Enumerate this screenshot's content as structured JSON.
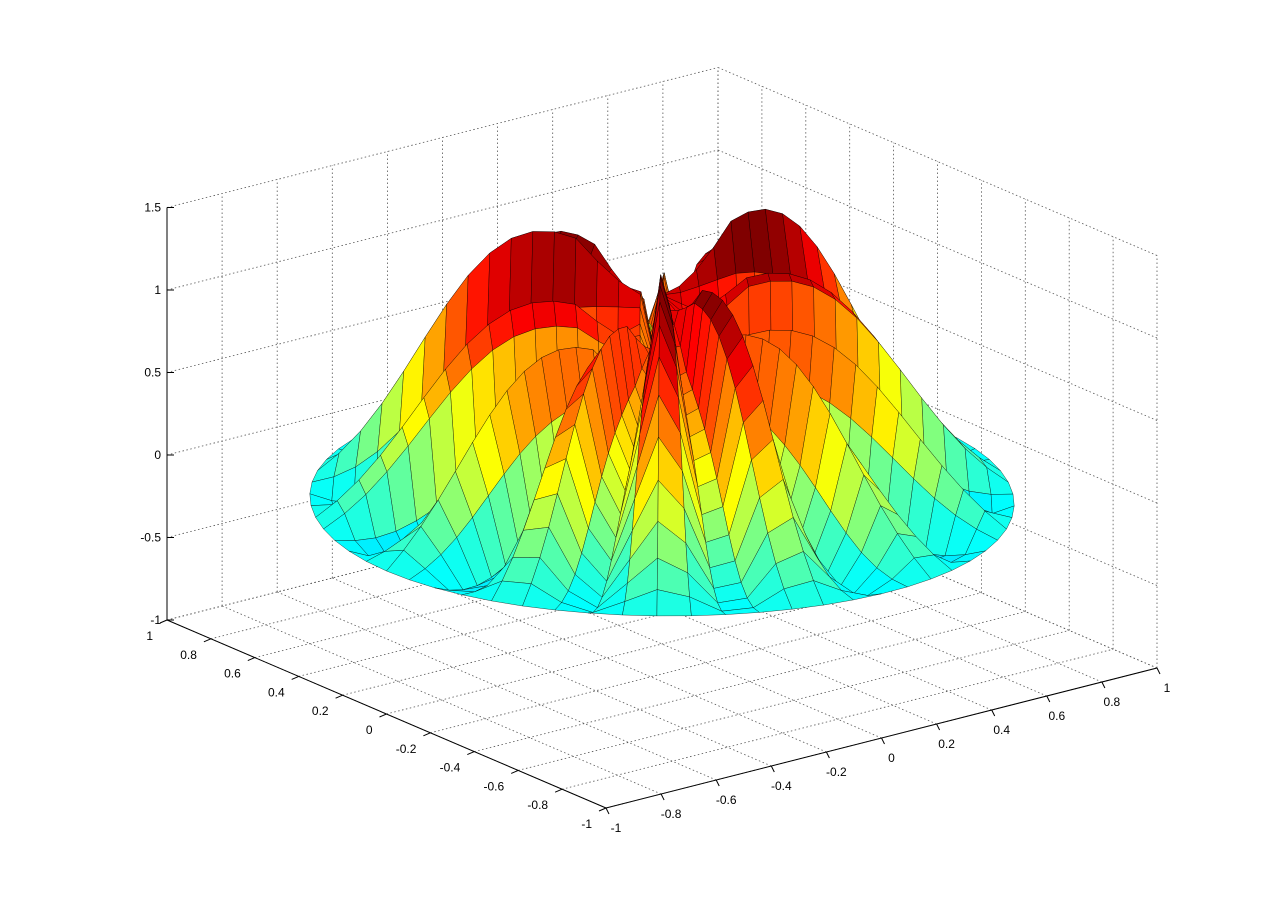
{
  "chart_data": {
    "type": "surface",
    "title": "",
    "xlabel": "",
    "ylabel": "",
    "zlabel": "",
    "colormap": "jet",
    "grid": true,
    "xlim": [
      -1,
      1
    ],
    "ylim": [
      -1,
      1
    ],
    "zlim": [
      -1,
      1.5
    ],
    "x_ticks": [
      "-1",
      "-0.8",
      "-0.6",
      "-0.4",
      "-0.2",
      "0",
      "0.2",
      "0.4",
      "0.6",
      "0.8",
      "1"
    ],
    "y_ticks": [
      "-1",
      "-0.8",
      "-0.6",
      "-0.4",
      "-0.2",
      "0",
      "0.2",
      "0.4",
      "0.6",
      "0.8",
      "1"
    ],
    "z_ticks": [
      "-1",
      "-0.5",
      "0",
      "0.5",
      "1",
      "1.5"
    ],
    "domain": "unit disk",
    "z_range_data": [
      -1.0,
      1.3
    ],
    "colors": {
      "low": "#0000c8",
      "mid": "#00dcdc",
      "high": "#c80000",
      "mesh": "#000000"
    }
  }
}
